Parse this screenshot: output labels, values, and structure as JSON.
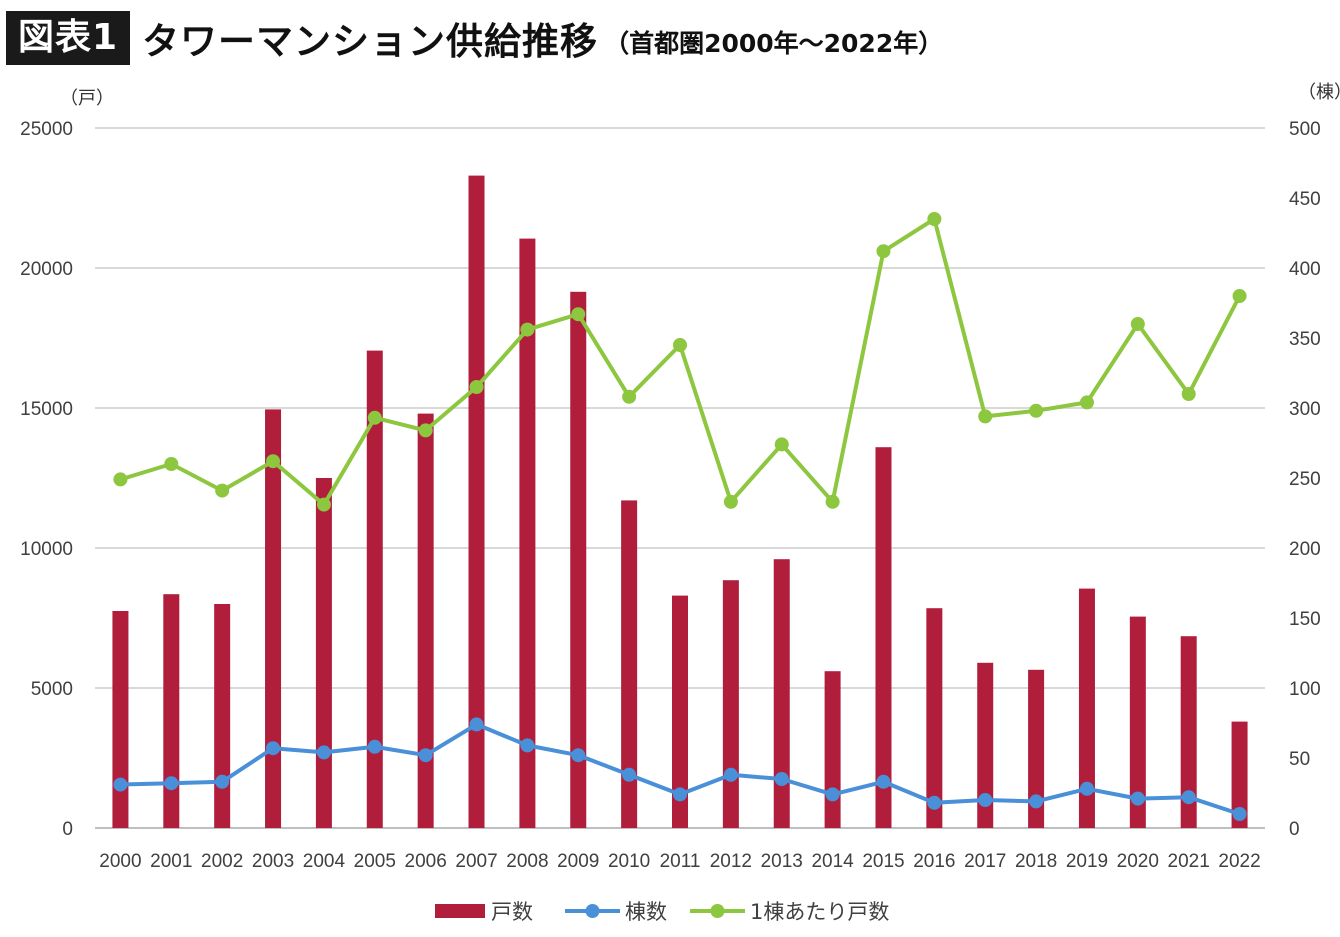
{
  "header": {
    "badge": "図表1",
    "title": "タワーマンション供給推移",
    "subtitle": "（首都圏2000年～2022年）"
  },
  "chart_data": {
    "type": "bar+line",
    "categories": [
      "2000",
      "2001",
      "2002",
      "2003",
      "2004",
      "2005",
      "2006",
      "2007",
      "2008",
      "2009",
      "2010",
      "2011",
      "2012",
      "2013",
      "2014",
      "2015",
      "2016",
      "2017",
      "2018",
      "2019",
      "2020",
      "2021",
      "2022"
    ],
    "left_axis": {
      "unit": "（戸）",
      "ylim": [
        0,
        25000
      ],
      "ticks": [
        0,
        5000,
        10000,
        15000,
        20000,
        25000
      ]
    },
    "right_axis": {
      "unit": "（棟）",
      "ylim": [
        0,
        500
      ],
      "ticks": [
        0,
        50,
        100,
        150,
        200,
        250,
        300,
        350,
        400,
        450,
        500
      ]
    },
    "grid": true,
    "legend_position": "bottom",
    "series": [
      {
        "name": "戸数",
        "type": "bar",
        "axis": "left",
        "color": "#B01E3C",
        "values": [
          7750,
          8350,
          8000,
          14950,
          12500,
          17050,
          14800,
          23300,
          21050,
          19150,
          11700,
          8300,
          8850,
          9600,
          5600,
          13600,
          7850,
          5900,
          5650,
          8550,
          7550,
          6850,
          3800
        ]
      },
      {
        "name": "棟数",
        "type": "line",
        "axis": "right",
        "color": "#4A90D9",
        "values": [
          31,
          32,
          33,
          57,
          54,
          58,
          52,
          74,
          59,
          52,
          38,
          24,
          38,
          35,
          24,
          33,
          18,
          20,
          19,
          28,
          21,
          22,
          10
        ]
      },
      {
        "name": "1棟あたり戸数",
        "type": "line",
        "axis": "right",
        "color": "#8DC63F",
        "values": [
          249,
          260,
          241,
          262,
          231,
          293,
          284,
          315,
          356,
          367,
          308,
          345,
          233,
          274,
          233,
          412,
          435,
          294,
          298,
          304,
          360,
          310,
          380
        ]
      }
    ]
  }
}
